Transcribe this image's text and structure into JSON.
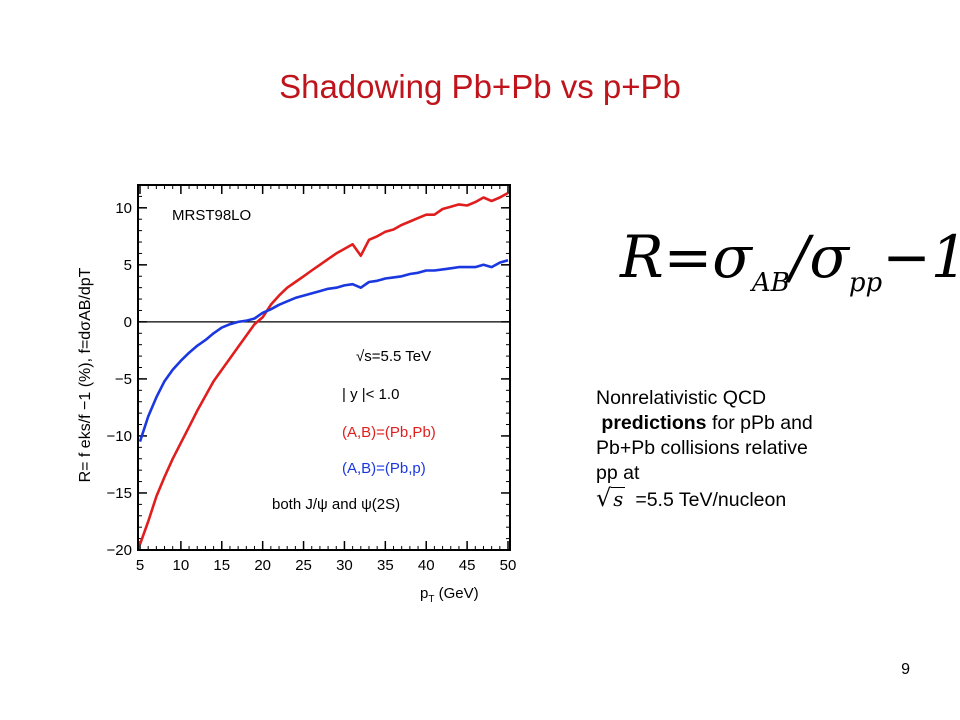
{
  "slide": {
    "title": "Shadowing  Pb+Pb vs p+Pb",
    "page_number": "9"
  },
  "formula": {
    "lhs": "R",
    "eq": "=",
    "sigma1": "σ",
    "sub1": "AB",
    "slash": "/",
    "sigma2": "σ",
    "sub2": "pp",
    "tail": "−1"
  },
  "note": {
    "line1": "Nonrelativistic QCD",
    "bold": "predictions",
    "line2_rest": " for pPb and",
    "line3": "Pb+Pb collisions relative",
    "line4": "pp at",
    "sqrt_symbol": "√",
    "sqrt_arg": "s",
    "line5": "=5.5 TeV/nucleon"
  },
  "chart_data": {
    "type": "line",
    "xlabel": "p",
    "xlabel_sub": "T",
    "xlabel_unit": " (GeV)",
    "ylabel": "R= f eks/f −1 (%),  f=dσAB/dpT",
    "xlim": [
      5,
      50
    ],
    "ylim": [
      -20,
      12
    ],
    "x_ticks": [
      "5",
      "10",
      "15",
      "20",
      "25",
      "30",
      "35",
      "40",
      "45",
      "50"
    ],
    "y_ticks": [
      "10",
      "5",
      "0",
      "−5",
      "−10",
      "−15",
      "−20"
    ],
    "annotations": {
      "model": "MRST98LO",
      "energy": "√s=5.5 TeV",
      "rapidity": "| y |< 1.0",
      "states": "both J/ψ and ψ(2S)"
    },
    "colors": {
      "series_1": "#e01e1e",
      "series_2": "#1a37e0",
      "axis": "#000000"
    },
    "series": [
      {
        "name": "(A,B)=(Pb,Pb)",
        "x": [
          5,
          6,
          7,
          8,
          9,
          10,
          11,
          12,
          13,
          14,
          15,
          16,
          17,
          18,
          19,
          20,
          21,
          22,
          23,
          24,
          25,
          26,
          27,
          28,
          29,
          30,
          31,
          32,
          33,
          34,
          35,
          36,
          37,
          38,
          39,
          40,
          41,
          42,
          43,
          44,
          45,
          46,
          47,
          48,
          49,
          50
        ],
        "values": [
          -19.5,
          -17.5,
          -15.3,
          -13.6,
          -12.0,
          -10.6,
          -9.2,
          -7.8,
          -6.5,
          -5.2,
          -4.2,
          -3.2,
          -2.2,
          -1.2,
          -0.2,
          0.4,
          1.5,
          2.3,
          3.0,
          3.5,
          4.0,
          4.5,
          5.0,
          5.5,
          6.0,
          6.4,
          6.8,
          5.8,
          7.2,
          7.5,
          7.9,
          8.1,
          8.5,
          8.8,
          9.1,
          9.4,
          9.4,
          9.9,
          10.1,
          10.3,
          10.2,
          10.5,
          10.9,
          10.6,
          10.9,
          11.3
        ]
      },
      {
        "name": "(A,B)=(Pb,p)",
        "x": [
          5,
          6,
          7,
          8,
          9,
          10,
          11,
          12,
          13,
          14,
          15,
          16,
          17,
          18,
          19,
          20,
          21,
          22,
          23,
          24,
          25,
          26,
          27,
          28,
          29,
          30,
          31,
          32,
          33,
          34,
          35,
          36,
          37,
          38,
          39,
          40,
          41,
          42,
          43,
          44,
          45,
          46,
          47,
          48,
          49,
          50
        ],
        "values": [
          -10.5,
          -8.3,
          -6.6,
          -5.2,
          -4.2,
          -3.4,
          -2.7,
          -2.1,
          -1.6,
          -1.0,
          -0.5,
          -0.2,
          0.0,
          0.1,
          0.3,
          0.8,
          1.1,
          1.5,
          1.8,
          2.1,
          2.3,
          2.5,
          2.7,
          2.9,
          3.0,
          3.2,
          3.3,
          3.0,
          3.5,
          3.6,
          3.8,
          3.9,
          4.0,
          4.2,
          4.3,
          4.5,
          4.5,
          4.6,
          4.7,
          4.8,
          4.8,
          4.8,
          5.0,
          4.8,
          5.2,
          5.4
        ]
      }
    ]
  }
}
